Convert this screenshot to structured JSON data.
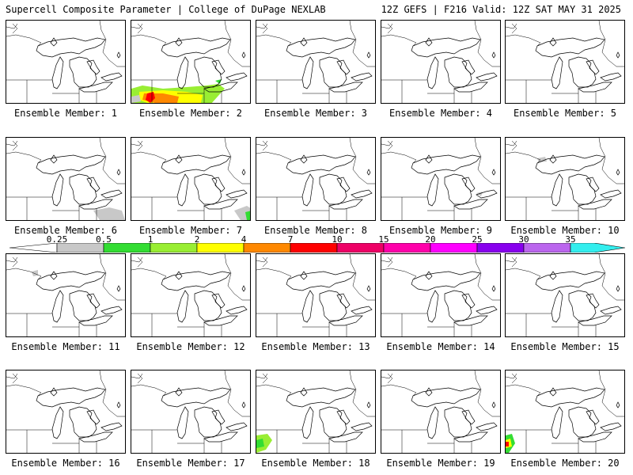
{
  "header": {
    "title": "Supercell Composite Parameter | College of DuPage NEXLAB",
    "run_info": "12Z GEFS | F216 Valid: 12Z SAT MAY 31 2025"
  },
  "panels": [
    {
      "label": "Ensemble Member: 1"
    },
    {
      "label": "Ensemble Member: 2"
    },
    {
      "label": "Ensemble Member: 3"
    },
    {
      "label": "Ensemble Member: 4"
    },
    {
      "label": "Ensemble Member: 5"
    },
    {
      "label": "Ensemble Member: 6"
    },
    {
      "label": "Ensemble Member: 7"
    },
    {
      "label": "Ensemble Member: 8"
    },
    {
      "label": "Ensemble Member: 9"
    },
    {
      "label": "Ensemble Member: 10"
    },
    {
      "label": "Ensemble Member: 11"
    },
    {
      "label": "Ensemble Member: 12"
    },
    {
      "label": "Ensemble Member: 13"
    },
    {
      "label": "Ensemble Member: 14"
    },
    {
      "label": "Ensemble Member: 15"
    },
    {
      "label": "Ensemble Member: 16"
    },
    {
      "label": "Ensemble Member: 17"
    },
    {
      "label": "Ensemble Member: 18"
    },
    {
      "label": "Ensemble Member: 19"
    },
    {
      "label": "Ensemble Member: 20"
    }
  ],
  "colorbar": {
    "ticks": [
      "0.25",
      "0.5",
      "1",
      "2",
      "4",
      "7",
      "10",
      "15",
      "20",
      "25",
      "30",
      "35"
    ],
    "colors": [
      "#c8c8c8",
      "#33dd33",
      "#99ee33",
      "#ffff00",
      "#ff8800",
      "#ff0000",
      "#ee0066",
      "#ff00aa",
      "#ff00ff",
      "#8800ee",
      "#bb66ee",
      "#33eeee"
    ]
  }
}
